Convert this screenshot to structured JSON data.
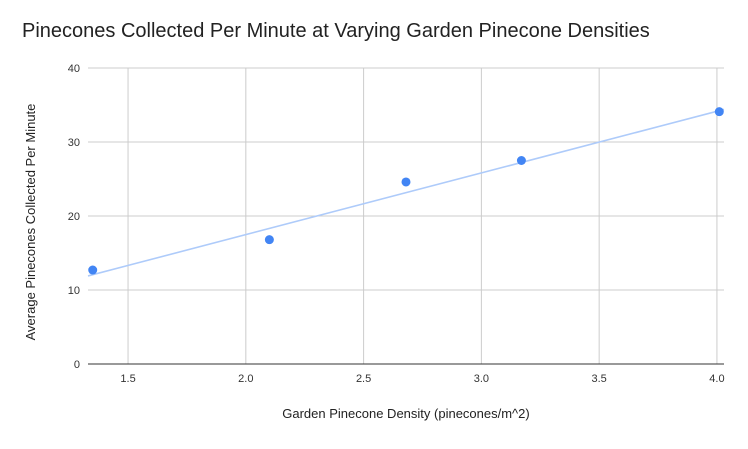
{
  "chart_data": {
    "type": "scatter",
    "title": "Pinecones Collected Per Minute at Varying Garden Pinecone Densities",
    "xlabel": "Garden Pinecone Density (pinecones/m^2)",
    "ylabel": "Average Pinecones Collected Per Minute",
    "xlim": [
      1.33,
      4.03
    ],
    "ylim": [
      0,
      40
    ],
    "x_ticks": [
      "1.5",
      "2.0",
      "2.5",
      "3.0",
      "3.5",
      "4.0"
    ],
    "x_tick_values": [
      1.5,
      2.0,
      2.5,
      3.0,
      3.5,
      4.0
    ],
    "y_ticks": [
      "0",
      "10",
      "20",
      "30",
      "40"
    ],
    "y_tick_values": [
      0,
      10,
      20,
      30,
      40
    ],
    "grid": true,
    "legend": "none",
    "series": [
      {
        "points": [
          {
            "x": 1.35,
            "y": 12.7
          },
          {
            "x": 2.1,
            "y": 16.8
          },
          {
            "x": 2.68,
            "y": 24.6
          },
          {
            "x": 3.17,
            "y": 27.5
          },
          {
            "x": 4.01,
            "y": 34.1
          }
        ],
        "color": "#4285f4"
      }
    ],
    "trendline": {
      "from": {
        "x": 1.33,
        "y": 11.9
      },
      "to": {
        "x": 4.03,
        "y": 34.4
      },
      "color": "#aecbfa"
    }
  }
}
